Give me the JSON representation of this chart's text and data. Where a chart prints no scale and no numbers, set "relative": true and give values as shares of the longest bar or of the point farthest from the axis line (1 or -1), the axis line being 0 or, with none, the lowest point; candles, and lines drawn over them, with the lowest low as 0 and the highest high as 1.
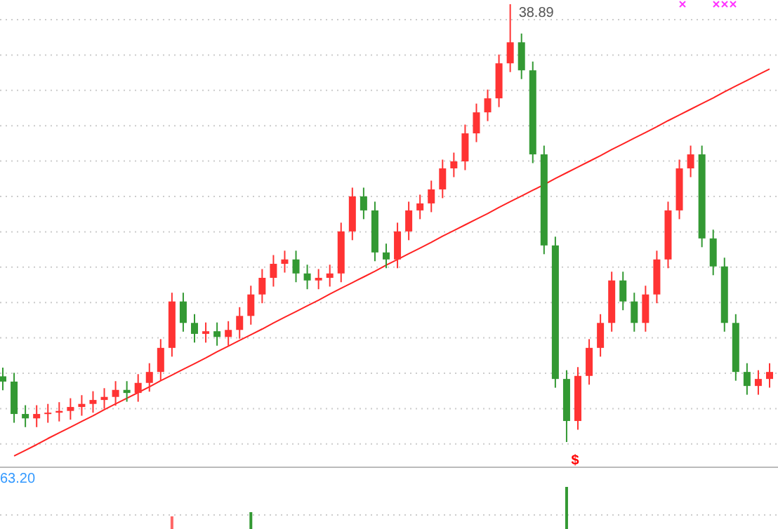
{
  "chart_data": [
    {
      "type": "candlestick",
      "relative": true,
      "grid": "y",
      "categories": [
        null,
        null,
        null,
        null,
        null,
        null,
        null,
        null,
        null,
        null,
        null,
        null,
        null,
        null,
        null,
        null,
        null,
        null,
        null,
        null,
        null,
        null,
        null,
        null,
        null,
        null,
        null,
        null,
        null,
        null,
        null,
        null,
        null,
        null,
        null,
        null,
        null,
        null,
        null,
        null,
        null,
        null,
        null,
        null,
        null,
        null,
        null,
        null,
        null,
        null,
        null,
        null,
        null,
        null,
        null,
        null,
        null,
        null,
        null,
        null,
        null,
        null,
        null,
        null,
        null,
        null,
        null,
        null,
        null
      ],
      "ohlc": [
        [
          0.15,
          0.17,
          0.118,
          0.138
        ],
        [
          0.138,
          0.158,
          0.044,
          0.064
        ],
        [
          0.064,
          0.084,
          0.034,
          0.054
        ],
        [
          0.054,
          0.084,
          0.034,
          0.064
        ],
        [
          0.064,
          0.087,
          0.044,
          0.067
        ],
        [
          0.067,
          0.091,
          0.047,
          0.071
        ],
        [
          0.071,
          0.1,
          0.051,
          0.08
        ],
        [
          0.08,
          0.107,
          0.06,
          0.087
        ],
        [
          0.087,
          0.116,
          0.067,
          0.096
        ],
        [
          0.096,
          0.123,
          0.076,
          0.103
        ],
        [
          0.103,
          0.139,
          0.083,
          0.119
        ],
        [
          0.119,
          0.139,
          0.092,
          0.112
        ],
        [
          0.112,
          0.155,
          0.092,
          0.135
        ],
        [
          0.135,
          0.18,
          0.115,
          0.16
        ],
        [
          0.16,
          0.235,
          0.14,
          0.215
        ],
        [
          0.215,
          0.341,
          0.195,
          0.321
        ],
        [
          0.321,
          0.341,
          0.252,
          0.272
        ],
        [
          0.272,
          0.292,
          0.227,
          0.247
        ],
        [
          0.247,
          0.273,
          0.227,
          0.253
        ],
        [
          0.253,
          0.273,
          0.22,
          0.24
        ],
        [
          0.24,
          0.276,
          0.22,
          0.256
        ],
        [
          0.256,
          0.308,
          0.236,
          0.288
        ],
        [
          0.288,
          0.357,
          0.268,
          0.337
        ],
        [
          0.337,
          0.395,
          0.317,
          0.375
        ],
        [
          0.375,
          0.427,
          0.355,
          0.407
        ],
        [
          0.407,
          0.437,
          0.387,
          0.417
        ],
        [
          0.417,
          0.437,
          0.365,
          0.385
        ],
        [
          0.385,
          0.405,
          0.349,
          0.369
        ],
        [
          0.369,
          0.395,
          0.349,
          0.375
        ],
        [
          0.375,
          0.405,
          0.355,
          0.385
        ],
        [
          0.385,
          0.501,
          0.365,
          0.481
        ],
        [
          0.481,
          0.581,
          0.461,
          0.561
        ],
        [
          0.561,
          0.581,
          0.509,
          0.529
        ],
        [
          0.529,
          0.549,
          0.413,
          0.433
        ],
        [
          0.433,
          0.453,
          0.397,
          0.417
        ],
        [
          0.417,
          0.501,
          0.397,
          0.481
        ],
        [
          0.481,
          0.549,
          0.461,
          0.529
        ],
        [
          0.529,
          0.565,
          0.509,
          0.545
        ],
        [
          0.545,
          0.597,
          0.525,
          0.577
        ],
        [
          0.577,
          0.645,
          0.557,
          0.625
        ],
        [
          0.625,
          0.661,
          0.605,
          0.641
        ],
        [
          0.641,
          0.725,
          0.621,
          0.705
        ],
        [
          0.705,
          0.773,
          0.685,
          0.753
        ],
        [
          0.753,
          0.805,
          0.733,
          0.785
        ],
        [
          0.785,
          0.885,
          0.765,
          0.865
        ],
        [
          0.865,
          1,
          0.845,
          0.913
        ],
        [
          0.913,
          0.933,
          0.829,
          0.849
        ],
        [
          0.849,
          0.869,
          0.637,
          0.657
        ],
        [
          0.657,
          0.677,
          0.429,
          0.449
        ],
        [
          0.449,
          0.469,
          0.124,
          0.144
        ],
        [
          0.144,
          0.164,
          0,
          0.048
        ],
        [
          0.048,
          0.171,
          0.028,
          0.151
        ],
        [
          0.151,
          0.235,
          0.131,
          0.215
        ],
        [
          0.215,
          0.292,
          0.195,
          0.272
        ],
        [
          0.272,
          0.389,
          0.252,
          0.369
        ],
        [
          0.369,
          0.389,
          0.301,
          0.321
        ],
        [
          0.321,
          0.341,
          0.252,
          0.272
        ],
        [
          0.272,
          0.357,
          0.252,
          0.337
        ],
        [
          0.337,
          0.437,
          0.317,
          0.417
        ],
        [
          0.417,
          0.549,
          0.397,
          0.529
        ],
        [
          0.529,
          0.645,
          0.509,
          0.625
        ],
        [
          0.625,
          0.677,
          0.605,
          0.657
        ],
        [
          0.657,
          0.677,
          0.445,
          0.465
        ],
        [
          0.465,
          0.485,
          0.381,
          0.401
        ],
        [
          0.401,
          0.421,
          0.252,
          0.272
        ],
        [
          0.272,
          0.292,
          0.14,
          0.16
        ],
        [
          0.16,
          0.18,
          0.108,
          0.128
        ],
        [
          0.128,
          0.164,
          0.108,
          0.144
        ],
        [
          0.144,
          0.18,
          0.124,
          0.16
        ]
      ],
      "colors": [
        "#339933",
        "#339933",
        "#339933",
        "#ff3333",
        "#ff3333",
        "#ff3333",
        "#ff3333",
        "#ff3333",
        "#ff3333",
        "#ff3333",
        "#ff3333",
        "#339933",
        "#ff3333",
        "#ff3333",
        "#ff3333",
        "#ff3333",
        "#339933",
        "#339933",
        "#ff3333",
        "#339933",
        "#ff3333",
        "#ff3333",
        "#ff3333",
        "#ff3333",
        "#ff3333",
        "#ff3333",
        "#339933",
        "#339933",
        "#ff3333",
        "#ff3333",
        "#ff3333",
        "#ff3333",
        "#339933",
        "#339933",
        "#339933",
        "#ff3333",
        "#ff3333",
        "#ff3333",
        "#ff3333",
        "#ff3333",
        "#ff3333",
        "#ff3333",
        "#ff3333",
        "#ff3333",
        "#ff3333",
        "#ff3333",
        "#339933",
        "#339933",
        "#339933",
        "#339933",
        "#339933",
        "#ff3333",
        "#ff3333",
        "#ff3333",
        "#ff3333",
        "#339933",
        "#339933",
        "#ff3333",
        "#ff3333",
        "#ff3333",
        "#ff3333",
        "#ff3333",
        "#339933",
        "#339933",
        "#339933",
        "#339933",
        "#339933",
        "#ff3333",
        "#ff3333"
      ],
      "series": [
        {
          "type": "line",
          "color": "#ff2222",
          "values": [
            null,
            -0.032,
            -0.019,
            -0.006,
            0.008,
            0.021,
            0.034,
            0.047,
            0.06,
            0.074,
            0.087,
            0.1,
            0.113,
            0.126,
            0.14,
            0.153,
            0.166,
            0.179,
            0.192,
            0.206,
            0.219,
            0.232,
            0.245,
            0.258,
            0.272,
            0.285,
            0.298,
            0.311,
            0.324,
            0.338,
            0.351,
            0.364,
            0.377,
            0.39,
            0.404,
            0.417,
            0.43,
            0.443,
            0.456,
            0.47,
            0.483,
            0.496,
            0.509,
            0.522,
            0.536,
            0.549,
            0.562,
            0.575,
            0.588,
            0.602,
            0.615,
            0.628,
            0.641,
            0.654,
            0.668,
            0.681,
            0.694,
            0.707,
            0.72,
            0.734,
            0.747,
            0.76,
            0.773,
            0.786,
            0.8,
            0.813,
            0.826,
            0.839,
            0.852
          ]
        }
      ],
      "annotations": [
        "38.89",
        "$"
      ]
    },
    {
      "type": "bar",
      "relative": true,
      "ref_lines": [
        {
          "axis": "y",
          "value": 0.333,
          "color": "#cccccc",
          "line_style": "dotted"
        }
      ],
      "categories": [
        null,
        null,
        null,
        null,
        null,
        null,
        null,
        null,
        null,
        null,
        null,
        null,
        null,
        null,
        null,
        null,
        null,
        null,
        null,
        null,
        null,
        null,
        null,
        null,
        null,
        null,
        null,
        null,
        null,
        null,
        null,
        null,
        null,
        null,
        null,
        null,
        null,
        null,
        null,
        null,
        null,
        null,
        null,
        null,
        null,
        null,
        null,
        null,
        null,
        null,
        null,
        null,
        null,
        null,
        null,
        null,
        null,
        null,
        null,
        null,
        null,
        null,
        null,
        null,
        null,
        null,
        null,
        null,
        null
      ],
      "values": [
        null,
        null,
        null,
        null,
        null,
        null,
        null,
        null,
        null,
        null,
        null,
        null,
        null,
        null,
        null,
        0.3,
        null,
        null,
        null,
        null,
        null,
        null,
        0.4,
        null,
        null,
        null,
        null,
        null,
        null,
        null,
        null,
        null,
        null,
        null,
        null,
        null,
        null,
        null,
        null,
        null,
        null,
        null,
        null,
        null,
        null,
        null,
        null,
        null,
        null,
        null,
        1,
        null,
        null,
        null,
        null,
        null,
        null,
        null,
        null,
        null,
        null,
        null,
        null,
        null,
        null,
        null,
        null,
        null,
        null
      ],
      "colors": [
        null,
        null,
        null,
        null,
        null,
        null,
        null,
        null,
        null,
        null,
        null,
        null,
        null,
        null,
        null,
        "#ff6666",
        null,
        null,
        null,
        null,
        null,
        null,
        "#339933",
        null,
        null,
        null,
        null,
        null,
        null,
        null,
        null,
        null,
        null,
        null,
        null,
        null,
        null,
        null,
        null,
        null,
        null,
        null,
        null,
        null,
        null,
        null,
        null,
        null,
        null,
        null,
        "#339933",
        null,
        null,
        null,
        null,
        null,
        null,
        null,
        null,
        null,
        null,
        null,
        null,
        null,
        null,
        null,
        null,
        null,
        null
      ],
      "annotations": [
        "63.20"
      ]
    }
  ]
}
